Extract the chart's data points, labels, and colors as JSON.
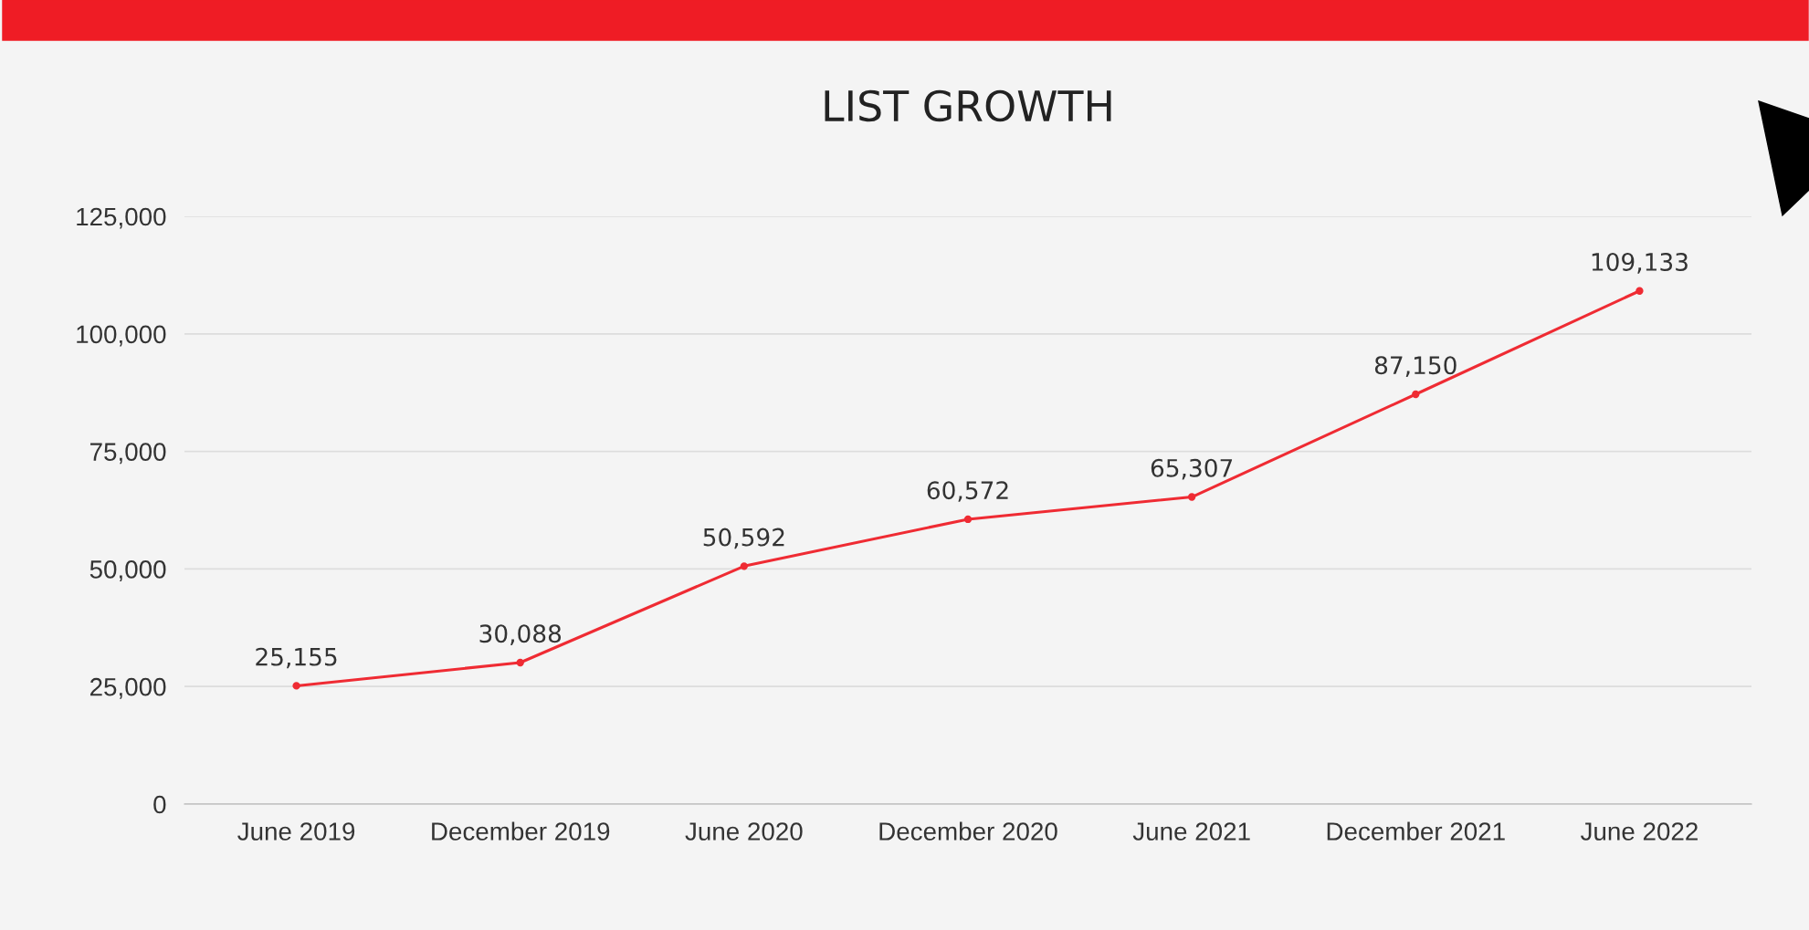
{
  "chart_data": {
    "type": "line",
    "title": "LIST GROWTH",
    "categories": [
      "June 2019",
      "December 2019",
      "June 2020",
      "December 2020",
      "June 2021",
      "December 2021",
      "June 2022"
    ],
    "series": [
      {
        "color": "#ef2b33",
        "values": [
          25155,
          30088,
          50592,
          60572,
          65307,
          87150,
          109133
        ],
        "value_labels": [
          "25,155",
          "30,088",
          "50,592",
          "60,572",
          "65,307",
          "87,150",
          "109,133"
        ]
      }
    ],
    "ylim": [
      0,
      125000
    ],
    "yticks": [
      {
        "value": 0,
        "label": "0"
      },
      {
        "value": 25000,
        "label": "25,000"
      },
      {
        "value": 50000,
        "label": "50,000"
      },
      {
        "value": 75000,
        "label": "75,000"
      },
      {
        "value": 100000,
        "label": "100,000"
      },
      {
        "value": 125000,
        "label": "125,000"
      }
    ],
    "grid": "y",
    "marker": "circle",
    "line_style": "solid"
  }
}
